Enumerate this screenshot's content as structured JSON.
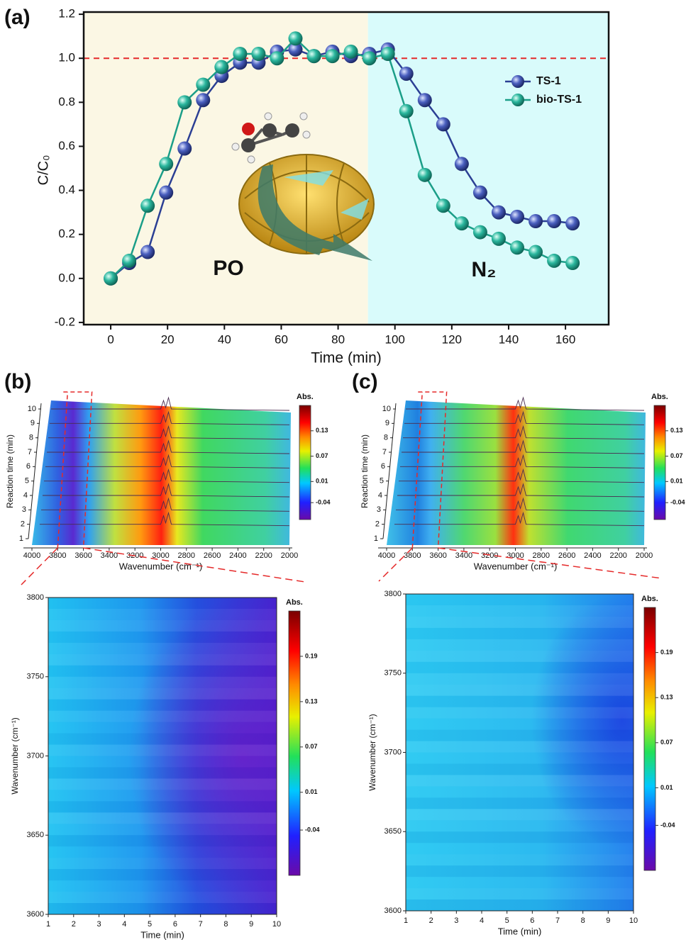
{
  "chart_data": [
    {
      "type": "line",
      "panel": "(a)",
      "xlabel": "Time (min)",
      "ylabel": "C/C₀",
      "xlim": [
        -9.5,
        175.2
      ],
      "ylim": [
        -0.21,
        1.21
      ],
      "xticks": [
        0,
        20,
        40,
        60,
        80,
        100,
        120,
        140,
        160
      ],
      "yticks": [
        {
          "value": -0.2,
          "label": "-0.2"
        },
        {
          "value": 0,
          "label": "0.0"
        },
        {
          "value": 0.2,
          "label": "0.2"
        },
        {
          "value": 0.4,
          "label": "0.4"
        },
        {
          "value": 0.6,
          "label": "0.6"
        },
        {
          "value": 0.8,
          "label": "0.8"
        },
        {
          "value": 1,
          "label": "1.0"
        },
        {
          "value": 1.2,
          "label": "1.2"
        }
      ],
      "shaded_regions": [
        {
          "xlim": [
            -9.5,
            90.5
          ],
          "color": "#fbf7e4"
        },
        {
          "xlim": [
            90.5,
            175.2
          ],
          "color": "#d9fbfb"
        }
      ],
      "reference_line": {
        "y": 1,
        "color": "#e52a2a"
      },
      "annotations": [
        "PO",
        "N₂"
      ],
      "legend": "upper right",
      "x": [
        0,
        6.5,
        13,
        19.5,
        26,
        32.5,
        39,
        45.5,
        52,
        58.5,
        65,
        71.5,
        78,
        84.5,
        91,
        97.5,
        104,
        110.5,
        117,
        123.5,
        130,
        136.5,
        143,
        149.5,
        156,
        162.5
      ],
      "series": [
        {
          "name": "TS-1",
          "color": "#2b3f94",
          "values": [
            0,
            0.07,
            0.12,
            0.39,
            0.59,
            0.81,
            0.92,
            0.98,
            0.98,
            1.03,
            1.04,
            1.01,
            1.03,
            1.01,
            1.02,
            1.04,
            0.93,
            0.81,
            0.7,
            0.52,
            0.39,
            0.3,
            0.28,
            0.26,
            0.26,
            0.25
          ]
        },
        {
          "name": "bio-TS-1",
          "color": "#1b9e88",
          "values": [
            0,
            0.08,
            0.33,
            0.52,
            0.8,
            0.88,
            0.96,
            1.02,
            1.02,
            1.0,
            1.09,
            1.01,
            1.01,
            1.03,
            1.0,
            1.02,
            0.76,
            0.47,
            0.33,
            0.25,
            0.21,
            0.18,
            0.14,
            0.12,
            0.08,
            0.07
          ]
        }
      ]
    },
    {
      "type": "waterfall",
      "panel": "(b)",
      "xlabel": "Wavenumber (cm⁻¹)",
      "ylabel": "Reaction time (min)",
      "xlim": [
        4000,
        2000
      ],
      "xticks": [
        4000,
        3800,
        3600,
        3400,
        3200,
        3000,
        2800,
        2600,
        2400,
        2200,
        2000
      ],
      "ylim": [
        1,
        10
      ],
      "yticks": [
        1,
        2,
        3,
        4,
        5,
        6,
        7,
        8,
        9,
        10
      ],
      "colorbar_label": "Abs.",
      "clim": [
        -0.08,
        0.19
      ],
      "colorbar_ticks": [
        0.13,
        0.07,
        0.01,
        -0.04
      ]
    },
    {
      "type": "waterfall",
      "panel": "(c)",
      "xlabel": "Wavenumber (cm⁻¹)",
      "ylabel": "Reaction time (min)",
      "xlim": [
        4000,
        2000
      ],
      "xticks": [
        4000,
        3800,
        3600,
        3400,
        3200,
        3000,
        2800,
        2600,
        2400,
        2200,
        2000
      ],
      "ylim": [
        1,
        10
      ],
      "yticks": [
        1,
        2,
        3,
        4,
        5,
        6,
        7,
        8,
        9,
        10
      ],
      "colorbar_label": "Abs.",
      "clim": [
        -0.08,
        0.19
      ],
      "colorbar_ticks": [
        0.13,
        0.07,
        0.01,
        -0.04
      ]
    },
    {
      "type": "heatmap",
      "xlabel": "Time (min)",
      "ylabel": "Wavenumber (cm⁻¹)",
      "xlim": [
        1,
        10
      ],
      "xticks": [
        1,
        2,
        3,
        4,
        5,
        6,
        7,
        8,
        9,
        10
      ],
      "ylim": [
        3600,
        3800
      ],
      "yticks": [
        3600,
        3650,
        3700,
        3750,
        3800
      ],
      "colorbar_label": "Abs.",
      "clim": [
        -0.1,
        0.25
      ],
      "colorbar_ticks": [
        0.19,
        0.13,
        0.07,
        0.01,
        -0.04
      ]
    },
    {
      "type": "heatmap",
      "xlabel": "Time (min)",
      "ylabel": "Wavenumber (cm⁻¹)",
      "xlim": [
        1,
        10
      ],
      "xticks": [
        1,
        2,
        3,
        4,
        5,
        6,
        7,
        8,
        9,
        10
      ],
      "ylim": [
        3600,
        3800
      ],
      "yticks": [
        3600,
        3650,
        3700,
        3750,
        3800
      ],
      "colorbar_label": "Abs.",
      "clim": [
        -0.1,
        0.25
      ],
      "colorbar_ticks": [
        0.19,
        0.13,
        0.07,
        0.01,
        -0.04
      ]
    }
  ]
}
